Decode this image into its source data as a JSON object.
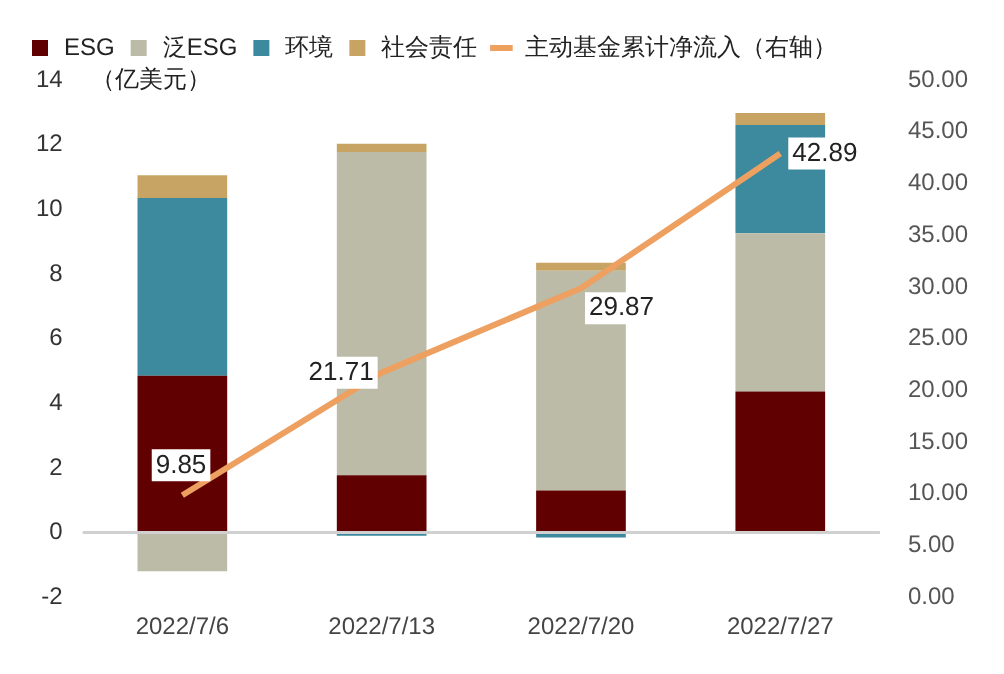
{
  "chart_data": {
    "type": "bar",
    "stacked": true,
    "ylabel": "（亿美元）",
    "categories": [
      "2022/7/6",
      "2022/7/13",
      "2022/7/20",
      "2022/7/27"
    ],
    "series": [
      {
        "name": "ESG",
        "color": "#600000",
        "values": [
          4.85,
          1.77,
          1.3,
          4.36
        ]
      },
      {
        "name": "泛ESG",
        "color": "#bcbba8",
        "values": [
          -1.2,
          10.0,
          6.8,
          4.9
        ]
      },
      {
        "name": "环境",
        "color": "#3d8a9e",
        "values": [
          5.5,
          -0.1,
          -0.15,
          3.35
        ]
      },
      {
        "name": "社会责任",
        "color": "#c8a464",
        "values": [
          0.7,
          0.26,
          0.25,
          0.37
        ]
      },
      {
        "name": "主动基金累计净流入（右轴）",
        "type": "line",
        "axis": "y2",
        "color": "#eda060",
        "values": [
          9.85,
          21.71,
          29.87,
          42.89
        ],
        "value_labels": [
          "9.85",
          "21.71",
          "29.87",
          "42.89"
        ]
      }
    ],
    "ylim": [
      -2,
      14
    ],
    "yticks": [
      -2,
      0,
      2,
      4,
      6,
      8,
      10,
      12,
      14
    ],
    "y2lim": [
      0,
      50
    ],
    "y2ticks": [
      {
        "value": 0,
        "label": "0.00"
      },
      {
        "value": 5,
        "label": "5.00"
      },
      {
        "value": 10,
        "label": "10.00"
      },
      {
        "value": 15,
        "label": "15.00"
      },
      {
        "value": 20,
        "label": "20.00"
      },
      {
        "value": 25,
        "label": "25.00"
      },
      {
        "value": 30,
        "label": "30.00"
      },
      {
        "value": 35,
        "label": "35.00"
      },
      {
        "value": 40,
        "label": "40.00"
      },
      {
        "value": 45,
        "label": "45.00"
      },
      {
        "value": 50,
        "label": "50.00"
      }
    ],
    "ref_lines": [
      {
        "axis": "y",
        "value": 0,
        "color": "#d0d0d0"
      }
    ],
    "grid": false,
    "legend": "top"
  }
}
